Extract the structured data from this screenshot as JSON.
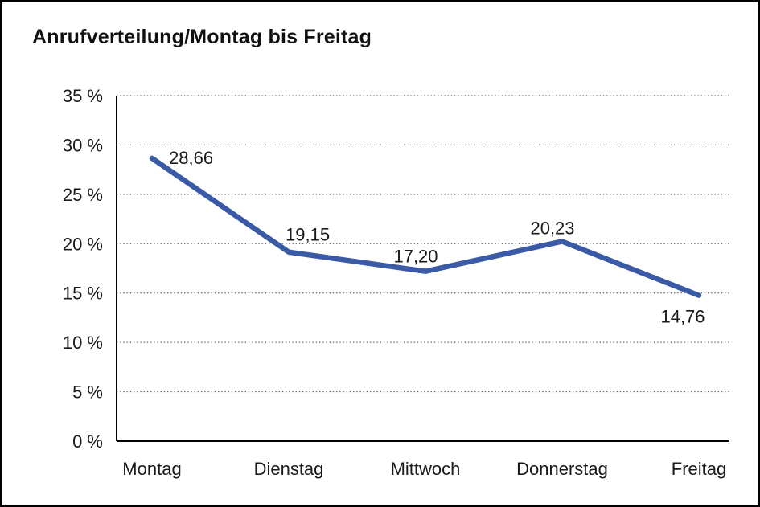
{
  "chart_data": {
    "type": "line",
    "title": "Anrufverteilung/Montag bis Freitag",
    "categories": [
      "Montag",
      "Dienstag",
      "Mittwoch",
      "Donnerstag",
      "Freitag"
    ],
    "series": [
      {
        "name": "Anrufverteilung",
        "values": [
          28.66,
          19.15,
          17.2,
          20.23,
          14.76
        ]
      }
    ],
    "point_labels": [
      "28,66",
      "19,15",
      "17,20",
      "20,23",
      "14,76"
    ],
    "xlabel": "",
    "ylabel": "",
    "ylim": [
      0,
      35
    ],
    "y_tick_step": 5,
    "y_tick_labels": [
      "0 %",
      "5 %",
      "10 %",
      "15 %",
      "20 %",
      "25 %",
      "30 %",
      "35 %"
    ],
    "grid": "horizontal-dotted",
    "legend": "none",
    "line_color": "#3A5AA6",
    "axis_color": "#000000",
    "grid_color": "#666666",
    "text_color": "#1A1A1A"
  }
}
